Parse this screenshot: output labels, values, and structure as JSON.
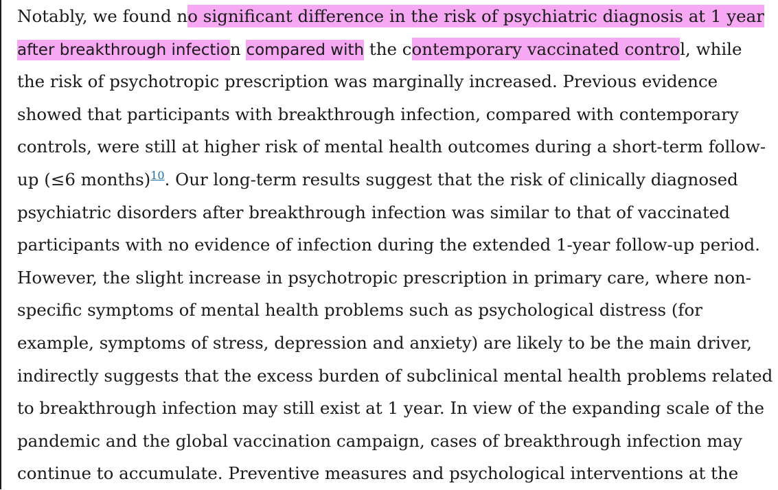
{
  "paragraph": {
    "l1_a": "Notably, we found n",
    "l1_hl": "o significant difference in the risk of psychiatric diagnosis at 1 year",
    "l2_hl1": "after breakthrough infectio",
    "l2_n": "n",
    "l2_sp": " ",
    "l2_hl2": "compared with",
    "l2_b": " the c",
    "l2_hl3": "ontemporary vaccinated contro",
    "l2_c": "l, while",
    "l3": "the risk of psychotropic prescription was marginally increased. Previous evidence",
    "l4": "showed that participants with breakthrough infection, compared with contemporary",
    "l5": "controls, were still at higher risk of mental health outcomes during a short-term follow-",
    "l6_a": "up (≤6 months)",
    "ref": "10",
    "l6_b": ". Our long-term results suggest that the risk of clinically diagnosed",
    "l7": "psychiatric disorders after breakthrough infection was similar to that of vaccinated",
    "l8": "participants with no evidence of infection during the extended 1-year follow-up period.",
    "l9": "However, the slight increase in psychotropic prescription in primary care, where non-",
    "l10": "specific symptoms of mental health problems such as psychological distress (for",
    "l11": "example, symptoms of stress, depression and anxiety) are likely to be the main driver,",
    "l12": "indirectly suggests that the excess burden of subclinical mental health problems related",
    "l13": "to breakthrough infection may still exist at 1 year. In view of the expanding scale of the",
    "l14": "pandemic and the global vaccination campaign, cases of breakthrough infection may",
    "l15": "continue to accumulate. Preventive measures and psychological interventions at the"
  },
  "colors": {
    "highlight": "#f7a8f3",
    "link": "#1f6fa8",
    "text": "#1a1a1a"
  }
}
